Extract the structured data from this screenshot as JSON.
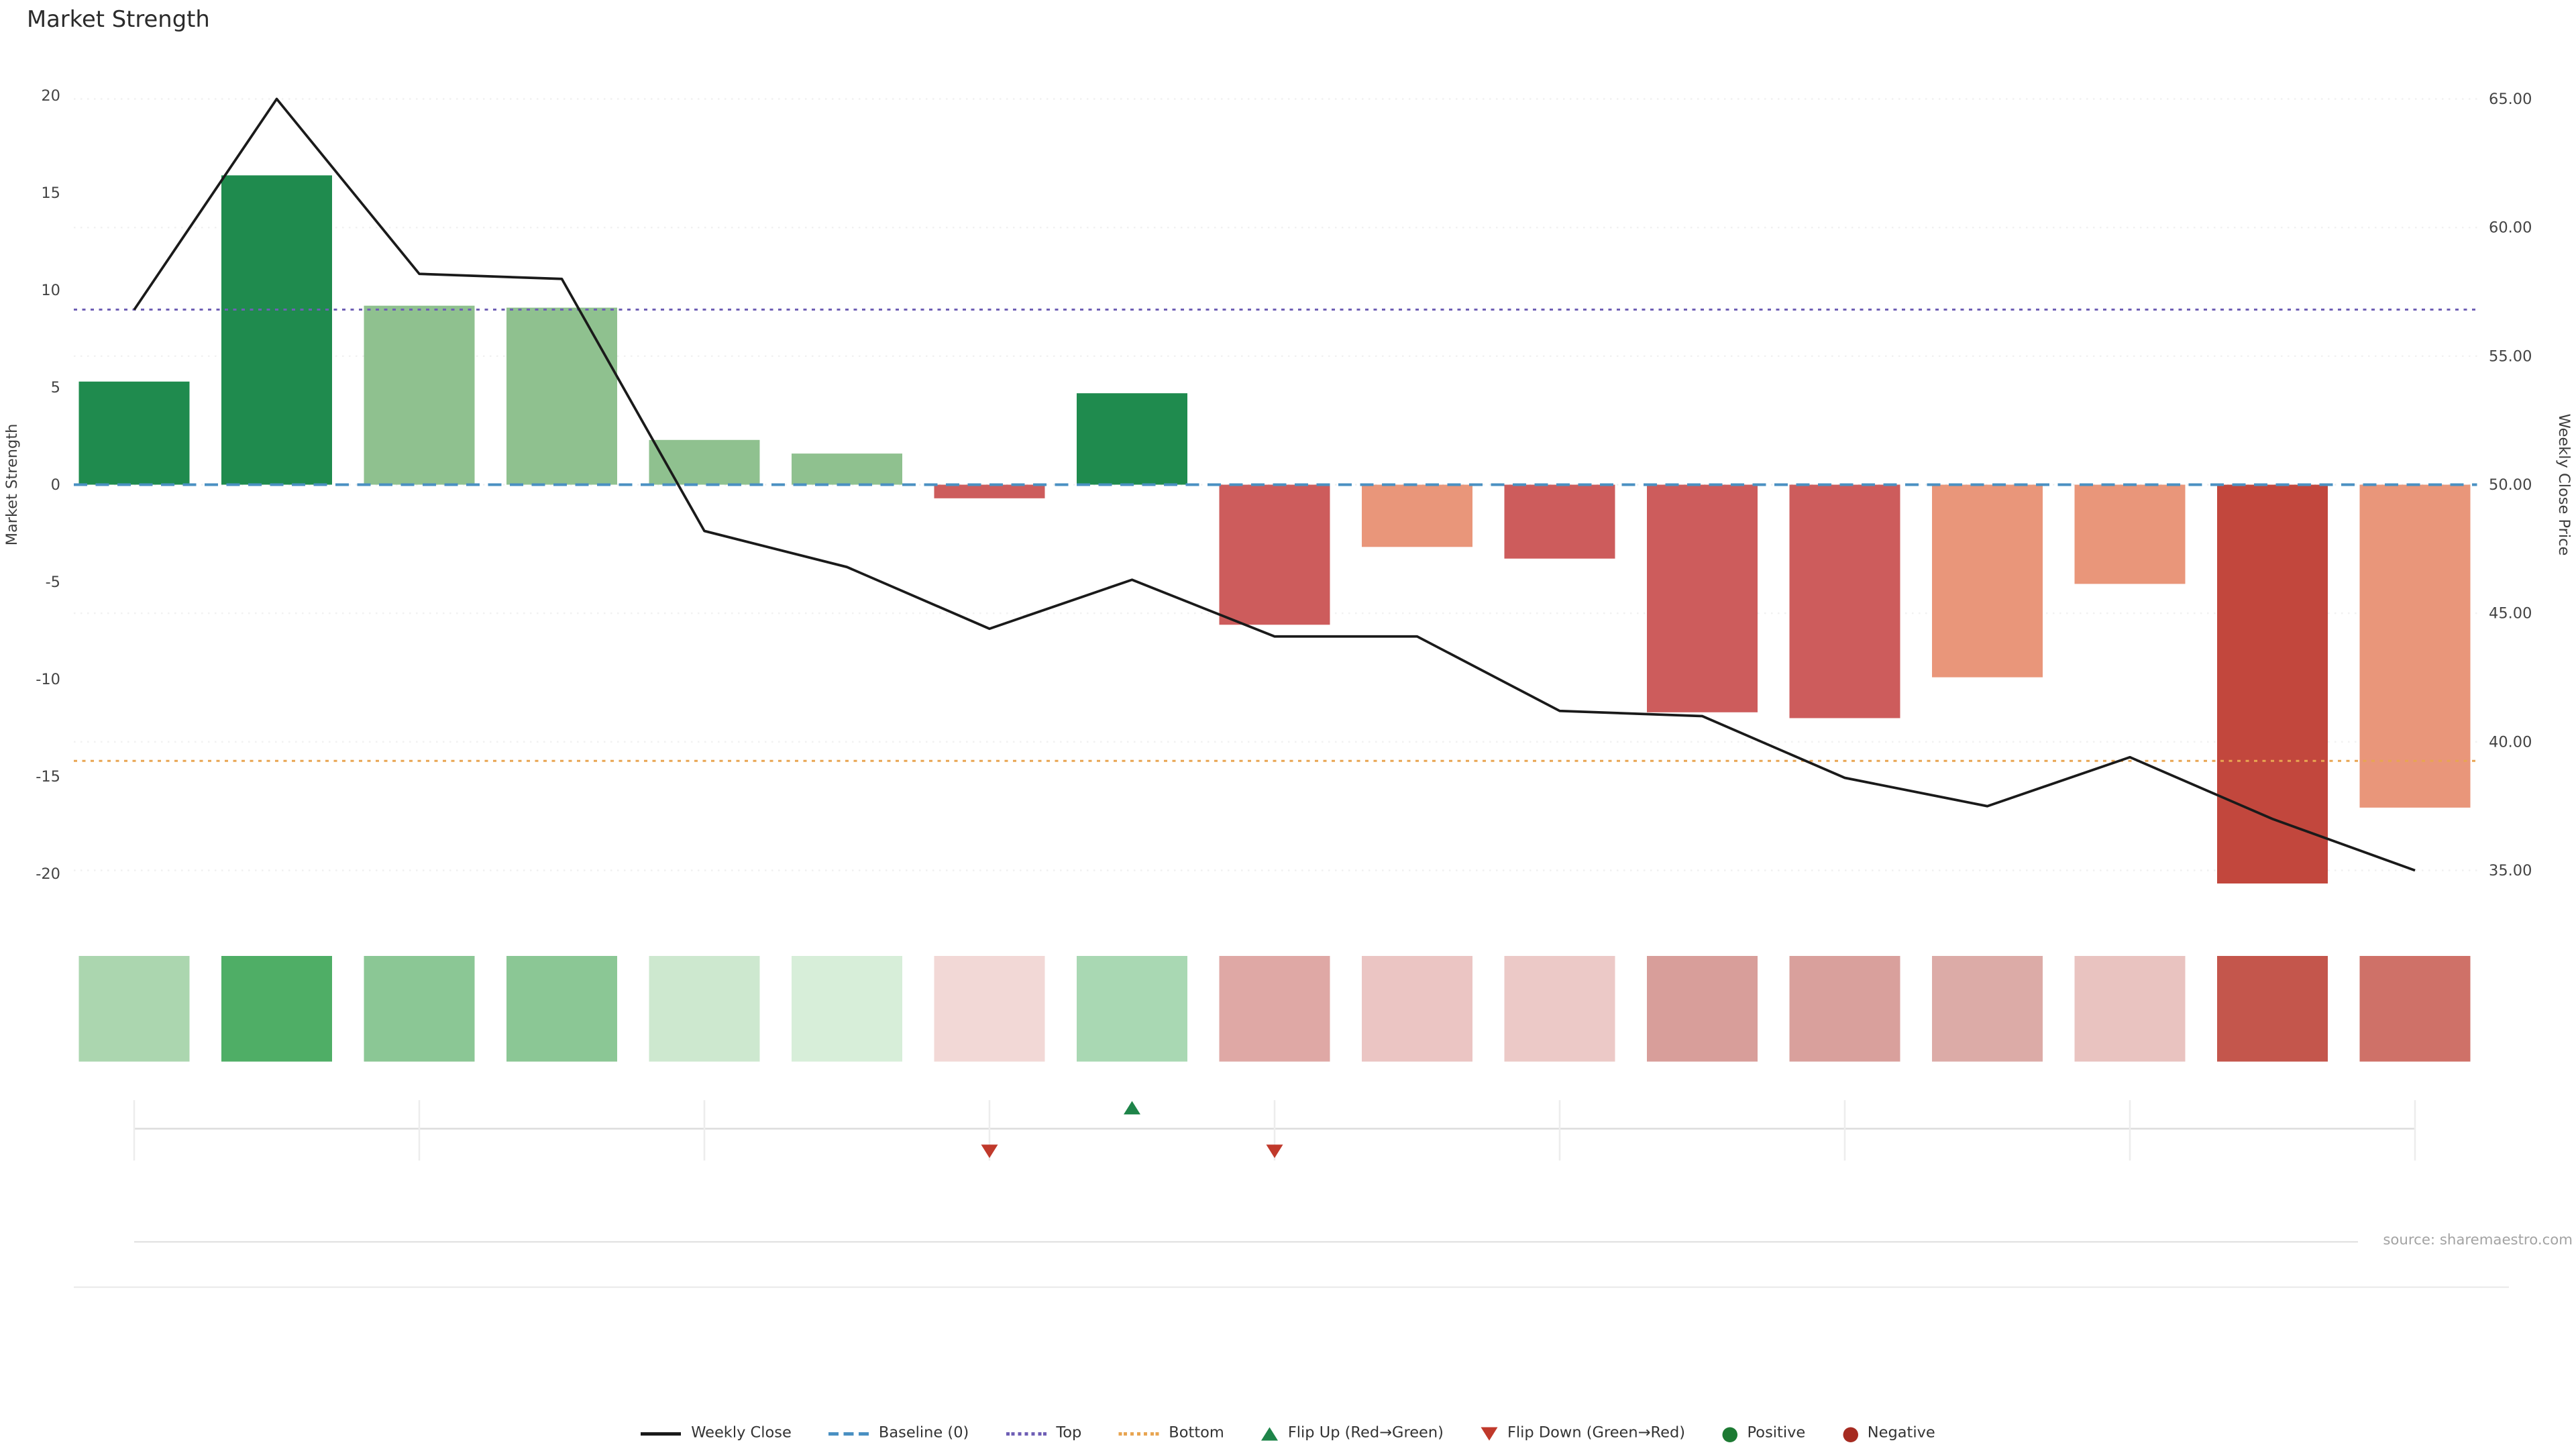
{
  "title": "Market Strength",
  "source": "source: sharemaestro.com",
  "chart_data": {
    "type": "bar+line combo with heat strip and flip markers",
    "num_periods": 17,
    "strength_bars": {
      "values": [
        5.3,
        15.9,
        9.2,
        9.1,
        2.3,
        1.6,
        -0.7,
        4.7,
        -7.2,
        -3.2,
        -3.8,
        -11.7,
        -12.0,
        -9.9,
        -5.1,
        -20.5,
        -16.6
      ],
      "colors": [
        "#1f8b4e",
        "#1f8b4e",
        "#8fc18f",
        "#8fc18f",
        "#8fc18f",
        "#8fc18f",
        "#cd5c5c",
        "#1f8b4e",
        "#cd5c5c",
        "#e9967a",
        "#cd5c5c",
        "#cd5c5c",
        "#cd5c5c",
        "#e9967a",
        "#e9967a",
        "#c2473d",
        "#e9967a"
      ]
    },
    "weekly_close": [
      56.8,
      65.0,
      58.2,
      58.0,
      48.2,
      46.8,
      44.4,
      46.3,
      44.1,
      44.1,
      41.2,
      41.0,
      38.6,
      37.5,
      39.4,
      37.0,
      35.0
    ],
    "line_color": "#1a1a1a",
    "reference_lines": {
      "baseline": 0,
      "top": 9.0,
      "bottom": -14.2,
      "baseline_color": "#4a90c2",
      "top_color": "#6f5fb5",
      "bottom_color": "#e8a552"
    },
    "left_axis": {
      "label": "Market Strength",
      "ticks": [
        20,
        15,
        10,
        5,
        0,
        -5,
        -10,
        -15,
        -20
      ]
    },
    "right_axis": {
      "label": "Weekly Close Price",
      "ticks": [
        "65.00",
        "60.00",
        "55.00",
        "50.00",
        "45.00",
        "40.00",
        "35.00"
      ]
    },
    "heat_strip_colors": [
      "#abd6af",
      "#4fae66",
      "#8bc795",
      "#8bc795",
      "#cde8cf",
      "#d7eed9",
      "#f2d8d6",
      "#a9d8b3",
      "#dfa8a5",
      "#ebc5c3",
      "#ecc9c7",
      "#d89e9a",
      "#d9a09c",
      "#dcaba7",
      "#e9c3c0",
      "#c4564c",
      "#cf7168"
    ],
    "flip_up_positions": [
      8
    ],
    "flip_down_positions": [
      7,
      9
    ],
    "flip_up_color": "#1e8449",
    "flip_down_color": "#c0392b"
  },
  "legend": [
    {
      "label": "Weekly Close",
      "icon": "line",
      "color": "#1a1a1a"
    },
    {
      "label": "Baseline (0)",
      "icon": "dashed-line",
      "color": "#4a90c2"
    },
    {
      "label": "Top",
      "icon": "dotted-line",
      "color": "#6f5fb5"
    },
    {
      "label": "Bottom",
      "icon": "dotted-line",
      "color": "#e8a552"
    },
    {
      "label": "Flip Up (Red→Green)",
      "icon": "triangle-up",
      "color": "#1e8449"
    },
    {
      "label": "Flip Down (Green→Red)",
      "icon": "triangle-down",
      "color": "#c0392b"
    },
    {
      "label": "Positive",
      "icon": "circle",
      "color": "#1d7a33"
    },
    {
      "label": "Negative",
      "icon": "circle",
      "color": "#a62b21"
    }
  ]
}
